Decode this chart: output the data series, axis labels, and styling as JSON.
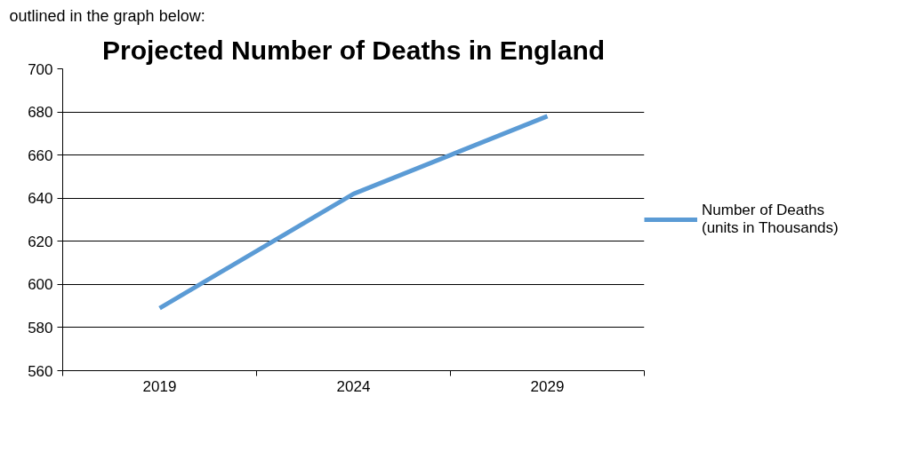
{
  "chart_data": {
    "type": "line",
    "title": "Projected Number of Deaths in England",
    "annotations": [
      "outlined in the graph below:"
    ],
    "categories": [
      "2019",
      "2024",
      "2029"
    ],
    "series": [
      {
        "name": "Number of Deaths (units in Thousands)",
        "color": "#5b9bd5",
        "values": [
          589,
          642,
          678
        ]
      }
    ],
    "ylim": [
      560,
      700
    ],
    "yticks": [
      560,
      580,
      600,
      620,
      640,
      660,
      680,
      700
    ],
    "grid": "y",
    "legend": "right",
    "marker": "none",
    "line_style": "solid"
  }
}
